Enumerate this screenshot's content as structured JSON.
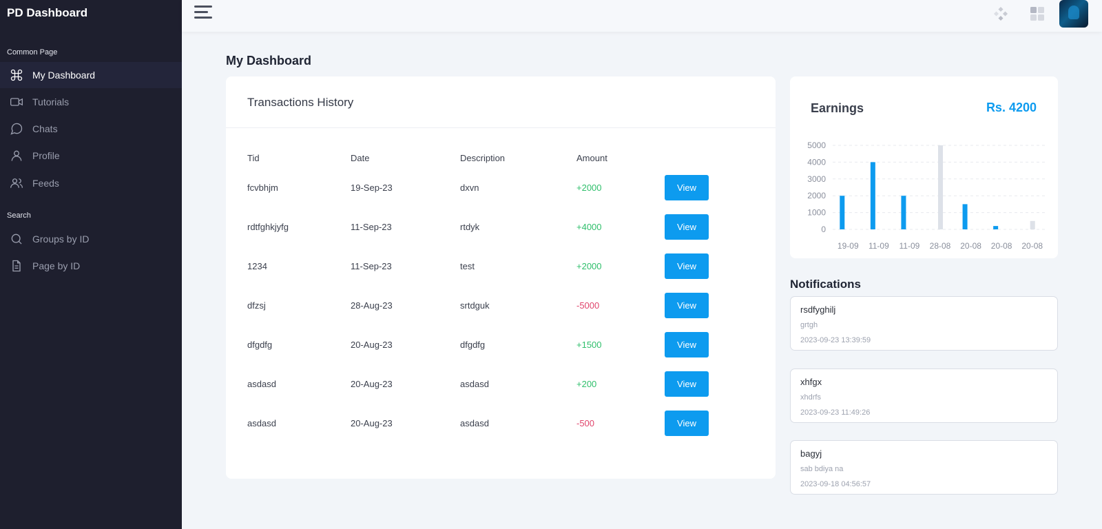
{
  "sidebar": {
    "brand": "PD Dashboard",
    "sections": [
      {
        "title": "Common Page"
      },
      {
        "title": "Search"
      }
    ],
    "items": [
      {
        "label": "My Dashboard",
        "icon": "command-icon",
        "active": true
      },
      {
        "label": "Tutorials",
        "icon": "video-icon"
      },
      {
        "label": "Chats",
        "icon": "chat-icon"
      },
      {
        "label": "Profile",
        "icon": "user-icon"
      },
      {
        "label": "Feeds",
        "icon": "users-icon"
      },
      {
        "label": "Groups by ID",
        "icon": "search-icon"
      },
      {
        "label": "Page by ID",
        "icon": "document-icon"
      }
    ]
  },
  "header": {
    "title": "My Dashboard"
  },
  "transactions": {
    "title": "Transactions History",
    "columns": [
      "Tid",
      "Date",
      "Description",
      "Amount"
    ],
    "button_label": "View",
    "rows": [
      {
        "tid": "fcvbhjm",
        "date": "19-Sep-23",
        "description": "dxvn",
        "amount": "+2000"
      },
      {
        "tid": "rdtfghkjyfg",
        "date": "11-Sep-23",
        "description": "rtdyk",
        "amount": "+4000"
      },
      {
        "tid": "1234",
        "date": "11-Sep-23",
        "description": "test",
        "amount": "+2000"
      },
      {
        "tid": "dfzsj",
        "date": "28-Aug-23",
        "description": "srtdguk",
        "amount": "-5000"
      },
      {
        "tid": "dfgdfg",
        "date": "20-Aug-23",
        "description": "dfgdfg",
        "amount": "+1500"
      },
      {
        "tid": "asdasd",
        "date": "20-Aug-23",
        "description": "asdasd",
        "amount": "+200"
      },
      {
        "tid": "asdasd",
        "date": "20-Aug-23",
        "description": "asdasd",
        "amount": "-500"
      }
    ]
  },
  "earnings": {
    "title": "Earnings",
    "amount": "Rs. 4200"
  },
  "chart_data": {
    "type": "bar",
    "categories": [
      "19-09",
      "11-09",
      "11-09",
      "28-08",
      "20-08",
      "20-08",
      "20-08"
    ],
    "series": [
      {
        "values": [
          2000,
          4000,
          2000,
          0,
          1500,
          200,
          0
        ],
        "color": "#0d9bef"
      },
      {
        "values": [
          0,
          0,
          0,
          5000,
          0,
          0,
          500
        ],
        "color": "#dde1e8"
      }
    ],
    "yticks": [
      0,
      1000,
      2000,
      3000,
      4000,
      5000
    ],
    "ylim": [
      0,
      5000
    ],
    "grid": true
  },
  "notifications": {
    "title": "Notifications",
    "items": [
      {
        "title": "rsdfyghilj",
        "body": "grtgh",
        "time": "2023-09-23 13:39:59"
      },
      {
        "title": "xhfgx",
        "body": "xhdrfs",
        "time": "2023-09-23 11:49:26"
      },
      {
        "title": "bagyj",
        "body": "sab bdiya na",
        "time": "2023-09-18 04:56:57"
      }
    ]
  },
  "colors": {
    "sidebar_bg": "#1e1f2e",
    "accent": "#0d9bef",
    "positive": "#2fbf6b",
    "negative": "#e0456c"
  }
}
